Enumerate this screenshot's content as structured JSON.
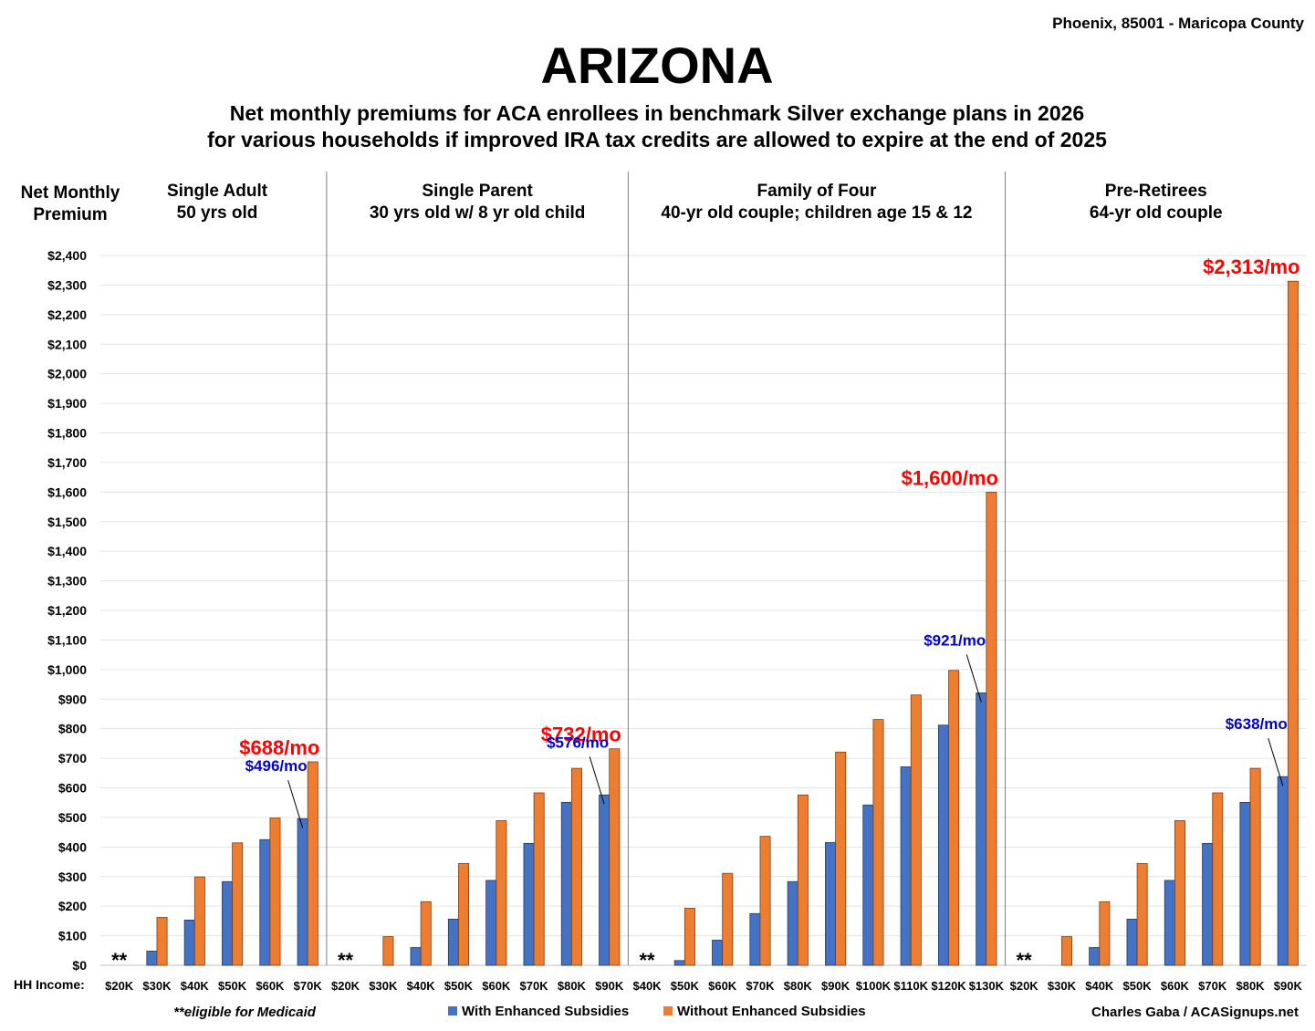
{
  "header": {
    "location": "Phoenix, 85001 - Maricopa County",
    "title": "ARIZONA",
    "subtitle_line1": "Net monthly premiums for ACA enrollees in benchmark Silver exchange plans in 2026",
    "subtitle_line2": "for various households if improved IRA tax credits are allowed to expire at the end of 2025"
  },
  "footer": {
    "x_axis_label": "HH Income:",
    "medicaid_note": "**eligible for Medicaid",
    "credit": "Charles Gaba / ACASignups.net"
  },
  "colors": {
    "with": "#4472c4",
    "without": "#ed7d31",
    "label_red": "#ff0000",
    "label_blue": "#0000cc"
  },
  "chart_data": {
    "type": "bar",
    "ylabel": "Net Monthly Premium",
    "ylim": [
      0,
      2400
    ],
    "ytick_step": 100,
    "ytick_labels": [
      "$0",
      "$100",
      "$200",
      "$300",
      "$400",
      "$500",
      "$600",
      "$700",
      "$800",
      "$900",
      "$1,000",
      "$1,100",
      "$1,200",
      "$1,300",
      "$1,400",
      "$1,500",
      "$1,600",
      "$1,700",
      "$1,800",
      "$1,900",
      "$2,000",
      "$2,100",
      "$2,200",
      "$2,300",
      "$2,400"
    ],
    "grid": true,
    "legend_position": "bottom",
    "legend": [
      {
        "name": "With Enhanced Subsidies",
        "color": "#4472c4"
      },
      {
        "name": "Without Enhanced Subsidies",
        "color": "#ed7d31"
      }
    ],
    "panels": [
      {
        "title_line1": "Single Adult",
        "title_line2": "50 yrs old",
        "categories": [
          "$20K",
          "$30K",
          "$40K",
          "$50K",
          "$60K",
          "$70K"
        ],
        "medicaid_marker": "**",
        "with": [
          0,
          48,
          153,
          283,
          425,
          496
        ],
        "without": [
          0,
          162,
          299,
          414,
          498,
          688
        ],
        "annotations": [
          {
            "text": "$688/mo",
            "color": "red"
          },
          {
            "text": "$496/mo",
            "color": "blue"
          }
        ]
      },
      {
        "title_line1": "Single Parent",
        "title_line2": "30 yrs old w/ 8 yr old child",
        "categories": [
          "$20K",
          "$30K",
          "$40K",
          "$50K",
          "$60K",
          "$70K",
          "$80K",
          "$90K"
        ],
        "medicaid_marker": "**",
        "with": [
          0,
          0,
          60,
          156,
          287,
          412,
          551,
          576
        ],
        "without": [
          0,
          97,
          215,
          344,
          489,
          583,
          666,
          732
        ],
        "annotations": [
          {
            "text": "$732/mo",
            "color": "red"
          },
          {
            "text": "$576/mo",
            "color": "blue"
          }
        ]
      },
      {
        "title_line1": "Family of Four",
        "title_line2": "40-yr old couple; children age 15 & 12",
        "categories": [
          "$40K",
          "$50K",
          "$60K",
          "$70K",
          "$80K",
          "$90K",
          "$100K",
          "$110K",
          "$120K",
          "$130K"
        ],
        "medicaid_marker": "**",
        "with": [
          0,
          16,
          85,
          175,
          283,
          415,
          542,
          671,
          812,
          921
        ],
        "without": [
          0,
          193,
          311,
          436,
          576,
          721,
          831,
          914,
          997,
          1600
        ],
        "annotations": [
          {
            "text": "$1,600/mo",
            "color": "red"
          },
          {
            "text": "$921/mo",
            "color": "blue"
          }
        ]
      },
      {
        "title_line1": "Pre-Retirees",
        "title_line2": "64-yr old couple",
        "categories": [
          "$20K",
          "$30K",
          "$40K",
          "$50K",
          "$60K",
          "$70K",
          "$80K",
          "$90K"
        ],
        "medicaid_marker": "**",
        "with": [
          0,
          0,
          60,
          156,
          287,
          412,
          551,
          638
        ],
        "without": [
          0,
          97,
          215,
          344,
          489,
          583,
          666,
          2313
        ],
        "annotations": [
          {
            "text": "$2,313/mo",
            "color": "red"
          },
          {
            "text": "$638/mo",
            "color": "blue"
          }
        ]
      }
    ]
  }
}
